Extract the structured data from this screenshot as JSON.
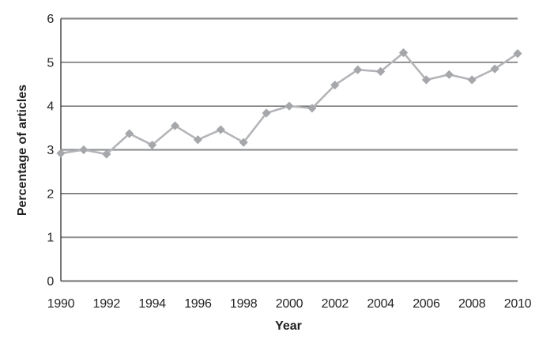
{
  "chart_data": {
    "type": "line",
    "title": "",
    "xlabel": "Year",
    "ylabel": "Percentage of articles",
    "x": [
      1990,
      1991,
      1992,
      1993,
      1994,
      1995,
      1996,
      1997,
      1998,
      1999,
      2000,
      2001,
      2002,
      2003,
      2004,
      2005,
      2006,
      2007,
      2008,
      2009,
      2010
    ],
    "values": [
      2.92,
      3.0,
      2.9,
      3.37,
      3.11,
      3.55,
      3.23,
      3.46,
      3.17,
      3.84,
      4.0,
      3.95,
      4.48,
      4.83,
      4.79,
      5.22,
      4.6,
      4.72,
      4.6,
      4.85,
      5.2
    ],
    "ylim": [
      0,
      6
    ],
    "yticks": [
      0,
      1,
      2,
      3,
      4,
      5,
      6
    ],
    "xticks": [
      1990,
      1992,
      1994,
      1996,
      1998,
      2000,
      2002,
      2004,
      2006,
      2008,
      2010
    ],
    "grid": "horizontal",
    "legend": "none",
    "marker": "diamond",
    "line_color": "#b3b5b8",
    "marker_color": "#a5a7aa",
    "text_color": "#242424",
    "background_color": "#ffffff"
  }
}
